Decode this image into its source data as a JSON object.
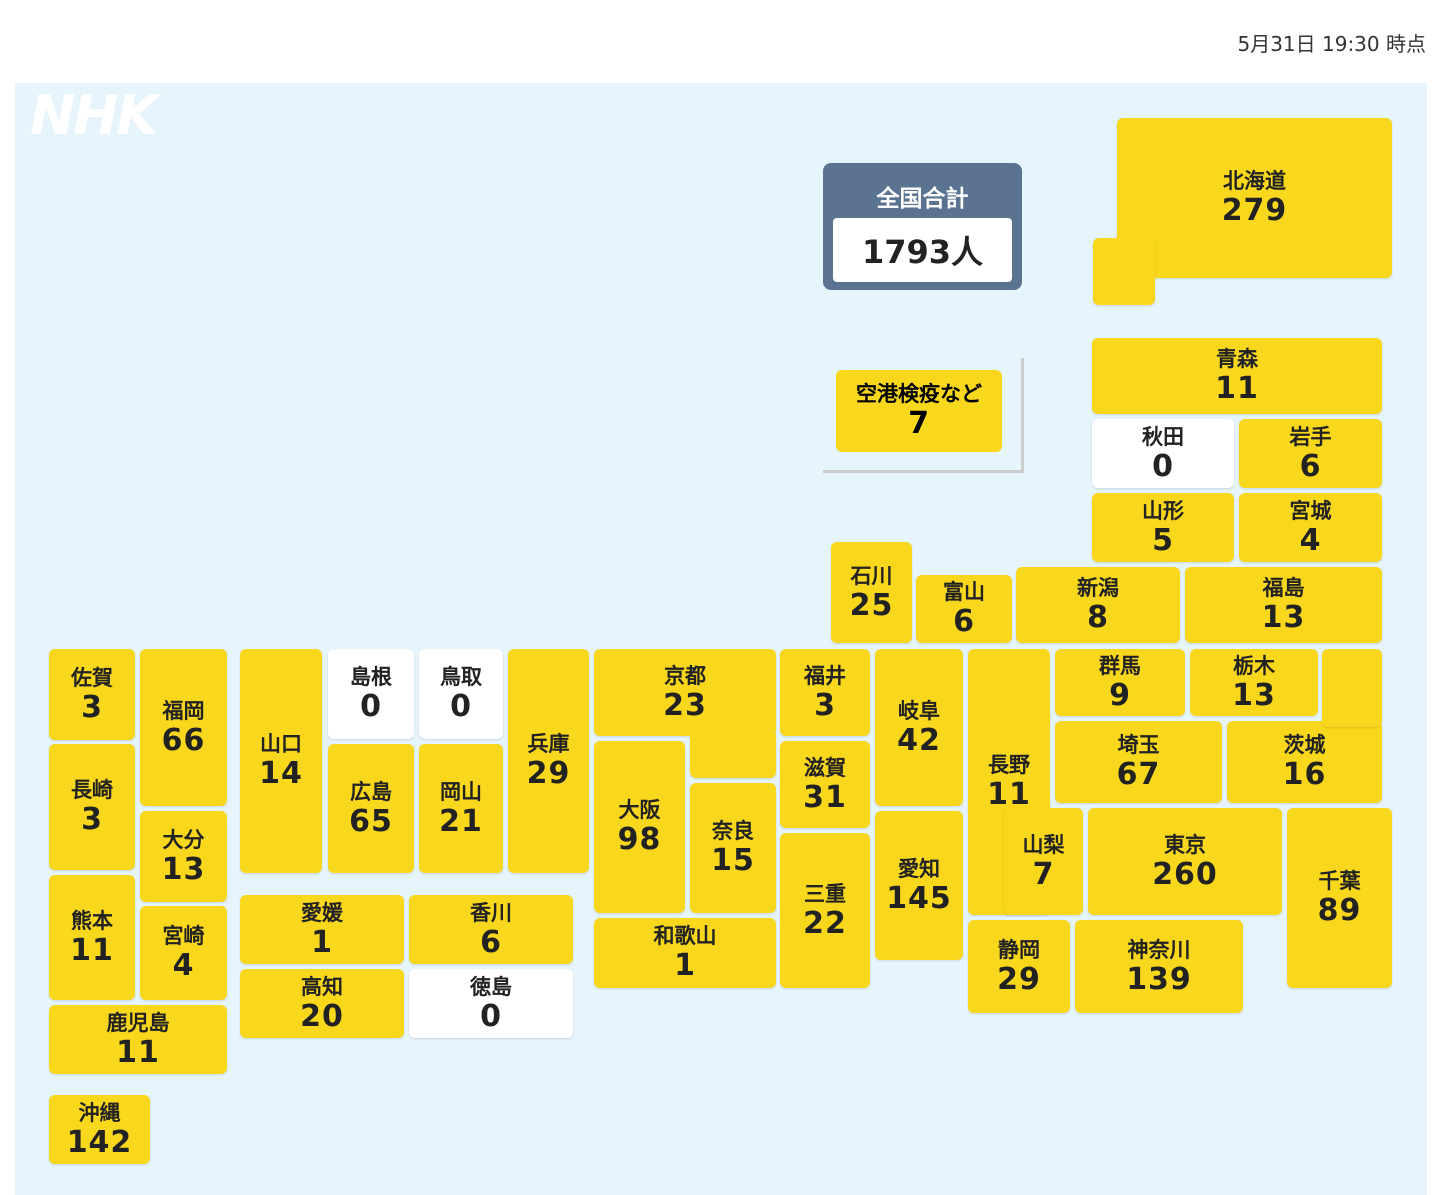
{
  "header": {
    "timestamp": "5月31日 19:30 時点"
  },
  "logo": "NHK",
  "total": {
    "label": "全国合計",
    "value": "1793人"
  },
  "airport": {
    "name": "空港検疫など",
    "count": 7
  },
  "prefectures": [
    {
      "name": "北海道",
      "count": 279
    },
    {
      "name": "青森",
      "count": 11
    },
    {
      "name": "秋田",
      "count": 0
    },
    {
      "name": "岩手",
      "count": 6
    },
    {
      "name": "山形",
      "count": 5
    },
    {
      "name": "宮城",
      "count": 4
    },
    {
      "name": "石川",
      "count": 25
    },
    {
      "name": "富山",
      "count": 6
    },
    {
      "name": "新潟",
      "count": 8
    },
    {
      "name": "福島",
      "count": 13
    },
    {
      "name": "佐賀",
      "count": 3
    },
    {
      "name": "福岡",
      "count": 66
    },
    {
      "name": "長崎",
      "count": 3
    },
    {
      "name": "大分",
      "count": 13
    },
    {
      "name": "熊本",
      "count": 11
    },
    {
      "name": "宮崎",
      "count": 4
    },
    {
      "name": "鹿児島",
      "count": 11
    },
    {
      "name": "沖縄",
      "count": 142
    },
    {
      "name": "山口",
      "count": 14
    },
    {
      "name": "島根",
      "count": 0
    },
    {
      "name": "鳥取",
      "count": 0
    },
    {
      "name": "広島",
      "count": 65
    },
    {
      "name": "岡山",
      "count": 21
    },
    {
      "name": "兵庫",
      "count": 29
    },
    {
      "name": "愛媛",
      "count": 1
    },
    {
      "name": "香川",
      "count": 6
    },
    {
      "name": "高知",
      "count": 20
    },
    {
      "name": "徳島",
      "count": 0
    },
    {
      "name": "京都",
      "count": 23
    },
    {
      "name": "大阪",
      "count": 98
    },
    {
      "name": "奈良",
      "count": 15
    },
    {
      "name": "和歌山",
      "count": 1
    },
    {
      "name": "福井",
      "count": 3
    },
    {
      "name": "滋賀",
      "count": 31
    },
    {
      "name": "三重",
      "count": 22
    },
    {
      "name": "岐阜",
      "count": 42
    },
    {
      "name": "愛知",
      "count": 145
    },
    {
      "name": "長野",
      "count": 11
    },
    {
      "name": "群馬",
      "count": 9
    },
    {
      "name": "栃木",
      "count": 13
    },
    {
      "name": "茨城",
      "count": 16
    },
    {
      "name": "埼玉",
      "count": 67
    },
    {
      "name": "山梨",
      "count": 7
    },
    {
      "name": "東京",
      "count": 260
    },
    {
      "name": "千葉",
      "count": 89
    },
    {
      "name": "静岡",
      "count": 29
    },
    {
      "name": "神奈川",
      "count": 139
    }
  ]
}
